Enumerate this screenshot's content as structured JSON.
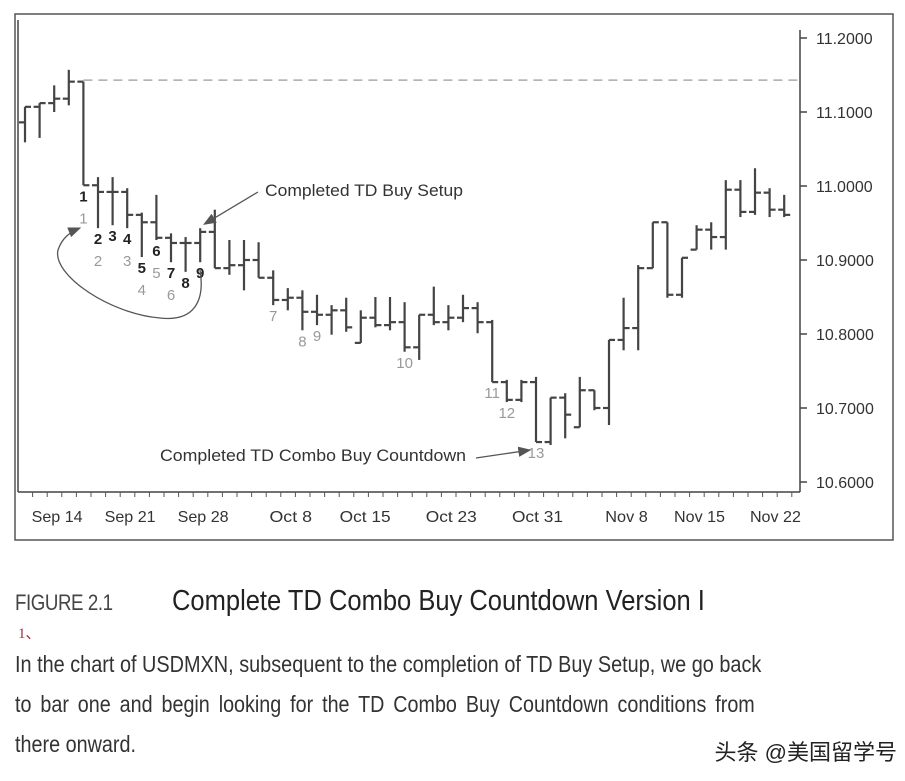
{
  "chart_data": {
    "type": "ohlc",
    "instrument": "USDMXN",
    "y_ticks": [
      "11.2000",
      "11.1000",
      "11.0000",
      "10.9000",
      "10.8000",
      "10.7000",
      "10.6000"
    ],
    "ylim": [
      10.6,
      11.2
    ],
    "y_axis_position": "right",
    "x_tick_labels": [
      {
        "label": "Sep 14",
        "bar": 2.2
      },
      {
        "label": "Sep 21",
        "bar": 7.2
      },
      {
        "label": "Sep 28",
        "bar": 12.2
      },
      {
        "label": "Oct 8",
        "bar": 18.2
      },
      {
        "label": "Oct 15",
        "bar": 23.3
      },
      {
        "label": "Oct 23",
        "bar": 29.2
      },
      {
        "label": "Oct 31",
        "bar": 35.1
      },
      {
        "label": "Nov 8",
        "bar": 41.2
      },
      {
        "label": "Nov 15",
        "bar": 46.2
      },
      {
        "label": "Nov 22",
        "bar": 51.4
      }
    ],
    "bars_ohlc": [
      [
        11.086,
        11.107,
        11.059,
        11.107
      ],
      [
        11.107,
        11.112,
        11.065,
        11.112
      ],
      [
        11.112,
        11.136,
        11.1,
        11.118
      ],
      [
        11.118,
        11.157,
        11.109,
        11.141
      ],
      [
        11.141,
        11.141,
        11.001,
        11.001
      ],
      [
        11.001,
        11.012,
        10.943,
        10.992
      ],
      [
        10.992,
        11.012,
        10.947,
        10.992
      ],
      [
        10.992,
        10.997,
        10.943,
        10.961
      ],
      [
        10.961,
        10.964,
        10.904,
        10.951
      ],
      [
        10.951,
        10.988,
        10.927,
        10.93
      ],
      [
        10.93,
        10.936,
        10.897,
        10.923
      ],
      [
        10.923,
        10.931,
        10.884,
        10.923
      ],
      [
        10.923,
        10.943,
        10.897,
        10.938
      ],
      [
        10.938,
        10.968,
        10.889,
        10.889
      ],
      [
        10.889,
        10.927,
        10.88,
        10.893
      ],
      [
        10.893,
        10.927,
        10.859,
        10.9
      ],
      [
        10.9,
        10.924,
        10.876,
        10.876
      ],
      [
        10.876,
        10.886,
        10.839,
        10.846
      ],
      [
        10.846,
        10.862,
        10.832,
        10.849
      ],
      [
        10.849,
        10.859,
        10.805,
        10.83
      ],
      [
        10.83,
        10.853,
        10.812,
        10.826
      ],
      [
        10.826,
        10.839,
        10.799,
        10.832
      ],
      [
        10.832,
        10.849,
        10.803,
        10.809
      ],
      [
        10.788,
        10.832,
        10.788,
        10.822
      ],
      [
        10.822,
        10.85,
        10.809,
        10.812
      ],
      [
        10.812,
        10.85,
        10.805,
        10.816
      ],
      [
        10.816,
        10.843,
        10.776,
        10.782
      ],
      [
        10.782,
        10.826,
        10.765,
        10.826
      ],
      [
        10.826,
        10.864,
        10.812,
        10.816
      ],
      [
        10.816,
        10.839,
        10.805,
        10.822
      ],
      [
        10.822,
        10.853,
        10.816,
        10.835
      ],
      [
        10.835,
        10.843,
        10.801,
        10.816
      ],
      [
        10.816,
        10.819,
        10.735,
        10.735
      ],
      [
        10.735,
        10.738,
        10.708,
        10.711
      ],
      [
        10.711,
        10.738,
        10.708,
        10.735
      ],
      [
        10.735,
        10.742,
        10.654,
        10.654
      ],
      [
        10.654,
        10.714,
        10.65,
        10.714
      ],
      [
        10.714,
        10.72,
        10.659,
        10.691
      ],
      [
        10.674,
        10.742,
        10.674,
        10.724
      ],
      [
        10.724,
        10.724,
        10.697,
        10.7
      ],
      [
        10.7,
        10.792,
        10.677,
        10.792
      ],
      [
        10.792,
        10.849,
        10.778,
        10.808
      ],
      [
        10.808,
        10.893,
        10.778,
        10.889
      ],
      [
        10.889,
        10.951,
        10.889,
        10.951
      ],
      [
        10.951,
        10.951,
        10.849,
        10.853
      ],
      [
        10.853,
        10.903,
        10.849,
        10.903
      ],
      [
        10.914,
        10.947,
        10.914,
        10.941
      ],
      [
        10.941,
        10.951,
        10.914,
        10.931
      ],
      [
        10.931,
        11.008,
        10.914,
        10.995
      ],
      [
        10.995,
        11.008,
        10.958,
        10.965
      ],
      [
        10.965,
        11.024,
        10.961,
        10.991
      ],
      [
        10.991,
        10.997,
        10.958,
        10.968
      ],
      [
        10.968,
        10.988,
        10.958,
        10.961
      ]
    ],
    "setup_labels": [
      {
        "bar": 4,
        "text": "1"
      },
      {
        "bar": 5,
        "text": "2"
      },
      {
        "bar": 6,
        "text": "3"
      },
      {
        "bar": 7,
        "text": "4"
      },
      {
        "bar": 8,
        "text": "5"
      },
      {
        "bar": 9,
        "text": "6"
      },
      {
        "bar": 10,
        "text": "7"
      },
      {
        "bar": 11,
        "text": "8"
      },
      {
        "bar": 12,
        "text": "9"
      }
    ],
    "countdown_labels": [
      {
        "bar": 4,
        "text": "1"
      },
      {
        "bar": 5,
        "text": "2"
      },
      {
        "bar": 7,
        "text": "3"
      },
      {
        "bar": 8,
        "text": "4"
      },
      {
        "bar": 9,
        "text": "5"
      },
      {
        "bar": 10,
        "text": "6"
      },
      {
        "bar": 17,
        "text": "7"
      },
      {
        "bar": 19,
        "text": "8"
      },
      {
        "bar": 20,
        "text": "9"
      },
      {
        "bar": 26,
        "text": "10"
      },
      {
        "bar": 32,
        "text": "11"
      },
      {
        "bar": 33,
        "text": "12"
      },
      {
        "bar": 35,
        "text": "13"
      }
    ],
    "reference_line": {
      "value": 11.143,
      "from_bar": 4,
      "style": "dashed"
    },
    "annotations": [
      {
        "text": "Completed TD Buy Setup",
        "target_bar": 12
      },
      {
        "text": "Completed TD Combo Buy Countdown",
        "target_bar": 35
      }
    ],
    "colors": {
      "bars": "#444444",
      "countdown": "#999999",
      "setup": "#222222",
      "dashed": "#aaaaaa"
    }
  },
  "caption": {
    "figure_number": "FIGURE 2.1",
    "title": "Complete TD Combo Buy Countdown Version I",
    "marker": "1、",
    "body_lines": [
      "In the chart of USDMXN, subsequent to the completion of TD Buy Setup, we go back",
      "to bar one and begin looking for the TD Combo Buy Countdown conditions from",
      "there onward."
    ]
  },
  "watermark": "头条 @美国留学号"
}
